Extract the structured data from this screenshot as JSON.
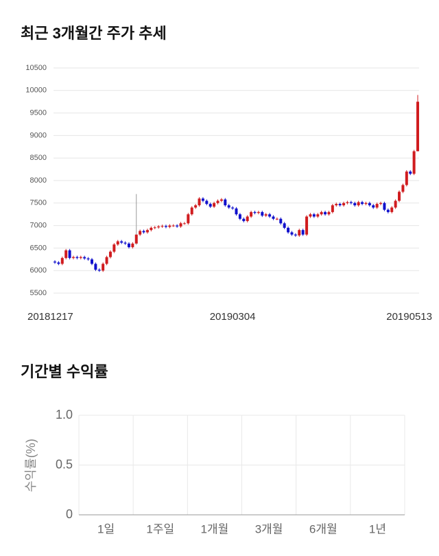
{
  "chart_data": [
    {
      "type": "candlestick",
      "title": "최근 3개월간 주가 추세",
      "categories": [
        "20181217",
        null,
        null,
        null,
        null,
        null,
        null,
        null,
        null,
        null,
        null,
        null,
        null,
        null,
        null,
        null,
        null,
        null,
        null,
        null,
        null,
        null,
        null,
        null,
        null,
        null,
        null,
        null,
        null,
        null,
        null,
        null,
        null,
        null,
        null,
        null,
        null,
        null,
        null,
        null,
        null,
        null,
        null,
        null,
        null,
        null,
        null,
        null,
        "20190304",
        null,
        null,
        null,
        null,
        null,
        null,
        null,
        null,
        null,
        null,
        null,
        null,
        null,
        null,
        null,
        null,
        null,
        null,
        null,
        null,
        null,
        null,
        null,
        null,
        null,
        null,
        null,
        null,
        null,
        null,
        null,
        null,
        null,
        null,
        null,
        null,
        null,
        null,
        null,
        null,
        null,
        null,
        null,
        null,
        null,
        null,
        null,
        null,
        null,
        "20190513"
      ],
      "open": [
        6200,
        6180,
        6150,
        6280,
        6450,
        6280,
        6300,
        6280,
        6300,
        6270,
        6250,
        6150,
        6020,
        6000,
        6150,
        6300,
        6420,
        6580,
        6650,
        6620,
        6600,
        6520,
        6600,
        6800,
        6880,
        6850,
        6900,
        6950,
        6960,
        6980,
        6990,
        6970,
        7000,
        7000,
        6980,
        7050,
        7050,
        7250,
        7400,
        7450,
        7600,
        7550,
        7480,
        7420,
        7500,
        7550,
        7580,
        7450,
        7400,
        7380,
        7250,
        7150,
        7100,
        7200,
        7300,
        7280,
        7300,
        7220,
        7250,
        7200,
        7150,
        7150,
        7050,
        6950,
        6850,
        6800,
        6780,
        6900,
        6800,
        7200,
        7250,
        7200,
        7250,
        7300,
        7250,
        7300,
        7450,
        7480,
        7450,
        7500,
        7520,
        7500,
        7450,
        7520,
        7480,
        7500,
        7450,
        7400,
        7480,
        7500,
        7350,
        7300,
        7400,
        7550,
        7750,
        7900,
        8200,
        8150,
        8650
      ],
      "high": [
        6230,
        6210,
        6310,
        6480,
        6480,
        6330,
        6330,
        6330,
        6330,
        6300,
        6280,
        6180,
        6050,
        6180,
        6330,
        6450,
        6610,
        6680,
        6680,
        6650,
        6630,
        6630,
        7700,
        6910,
        6910,
        6930,
        6980,
        6990,
        7010,
        7020,
        7020,
        7030,
        7030,
        7030,
        7080,
        7080,
        7280,
        7430,
        7480,
        7630,
        7630,
        7580,
        7510,
        7530,
        7580,
        7610,
        7610,
        7480,
        7430,
        7410,
        7280,
        7180,
        7230,
        7330,
        7330,
        7330,
        7330,
        7280,
        7280,
        7230,
        7180,
        7180,
        7080,
        6980,
        6880,
        6830,
        6930,
        6930,
        7230,
        7280,
        7280,
        7280,
        7330,
        7330,
        7330,
        7480,
        7510,
        7510,
        7530,
        7550,
        7550,
        7530,
        7550,
        7550,
        7530,
        7530,
        7480,
        7510,
        7530,
        7530,
        7380,
        7430,
        7580,
        7780,
        7930,
        8230,
        8230,
        8680,
        9900
      ],
      "low": [
        6150,
        6120,
        6120,
        6250,
        6250,
        6250,
        6250,
        6250,
        6240,
        6220,
        6120,
        5990,
        5970,
        5970,
        6120,
        6270,
        6390,
        6550,
        6590,
        6570,
        6490,
        6490,
        6570,
        6770,
        6820,
        6820,
        6870,
        6920,
        6930,
        6950,
        6940,
        6940,
        6970,
        6950,
        6950,
        7020,
        7020,
        7220,
        7370,
        7420,
        7520,
        7450,
        7390,
        7390,
        7470,
        7520,
        7420,
        7370,
        7350,
        7220,
        7120,
        7070,
        7070,
        7170,
        7250,
        7250,
        7190,
        7190,
        7170,
        7120,
        7120,
        7020,
        6920,
        6820,
        6770,
        6750,
        6750,
        6770,
        6770,
        7170,
        7170,
        7170,
        7220,
        7220,
        7220,
        7270,
        7420,
        7420,
        7420,
        7470,
        7470,
        7420,
        7420,
        7450,
        7450,
        7420,
        7370,
        7370,
        7450,
        7320,
        7270,
        7270,
        7370,
        7520,
        7720,
        7870,
        8120,
        8120,
        8650
      ],
      "close": [
        6180,
        6150,
        6280,
        6450,
        6280,
        6300,
        6280,
        6300,
        6270,
        6250,
        6150,
        6020,
        6000,
        6150,
        6300,
        6420,
        6580,
        6650,
        6620,
        6600,
        6520,
        6600,
        6800,
        6880,
        6850,
        6900,
        6950,
        6960,
        6980,
        6990,
        6970,
        7000,
        7000,
        6980,
        7050,
        7050,
        7250,
        7400,
        7450,
        7600,
        7550,
        7480,
        7420,
        7500,
        7550,
        7580,
        7450,
        7400,
        7380,
        7250,
        7150,
        7100,
        7200,
        7300,
        7280,
        7300,
        7220,
        7250,
        7200,
        7150,
        7150,
        7050,
        6950,
        6850,
        6800,
        6780,
        6900,
        6800,
        7200,
        7250,
        7200,
        7250,
        7300,
        7250,
        7300,
        7450,
        7480,
        7450,
        7500,
        7520,
        7500,
        7450,
        7520,
        7480,
        7500,
        7450,
        7400,
        7480,
        7500,
        7350,
        7300,
        7400,
        7550,
        7750,
        7900,
        8200,
        8150,
        8650,
        9750
      ],
      "ylim": [
        5500,
        10500
      ],
      "yticks": [
        5500,
        6000,
        6500,
        7000,
        7500,
        8000,
        8500,
        9000,
        9500,
        10000,
        10500
      ],
      "grid": true,
      "up_color": "#d01c1f",
      "down_color": "#1010cc"
    },
    {
      "type": "bar",
      "title": "기간별 수익률",
      "y_label": "수익률(%)",
      "categories": [
        "1일",
        "1주일",
        "1개월",
        "3개월",
        "6개월",
        "1년"
      ],
      "values": [
        null,
        null,
        null,
        null,
        null,
        null
      ],
      "ylim": [
        0,
        1
      ],
      "yticks": [
        0,
        0.5,
        {
          "value": 1,
          "label": "1.0"
        }
      ],
      "grid": true,
      "color": "#d01c1f"
    }
  ]
}
